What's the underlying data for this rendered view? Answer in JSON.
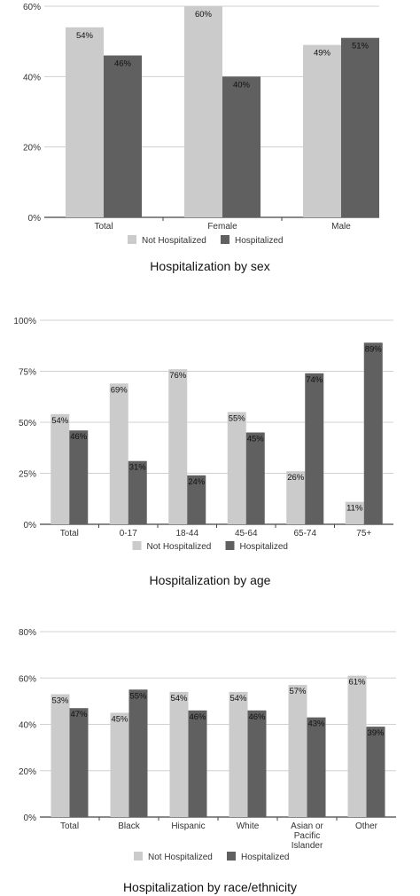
{
  "colors": {
    "not_hospitalized": "#cbcbcb",
    "hospitalized": "#606060",
    "grid": "#d0d0d0",
    "axis": "#444444"
  },
  "legend": {
    "not_hospitalized": "Not Hospitalized",
    "hospitalized": "Hospitalized"
  },
  "chart_data": [
    {
      "type": "bar",
      "title": "Hospitalization by sex",
      "categories": [
        "Total",
        "Female",
        "Male"
      ],
      "series": [
        {
          "name": "Not Hospitalized",
          "values": [
            54,
            60,
            49
          ],
          "labels": [
            "54%",
            "60%",
            "49%"
          ]
        },
        {
          "name": "Hospitalized",
          "values": [
            46,
            40,
            51
          ],
          "labels": [
            "46%",
            "40%",
            "51%"
          ]
        }
      ],
      "ylim": [
        0,
        60
      ],
      "yticks": [
        0,
        20,
        40,
        60
      ],
      "ytick_labels": [
        "0%",
        "20%",
        "40%",
        "60%"
      ],
      "grid": true,
      "legend_position": "bottom"
    },
    {
      "type": "bar",
      "title": "Hospitalization by age",
      "categories": [
        "Total",
        "0-17",
        "18-44",
        "45-64",
        "65-74",
        "75+"
      ],
      "series": [
        {
          "name": "Not Hospitalized",
          "values": [
            54,
            69,
            76,
            55,
            26,
            11
          ],
          "labels": [
            "54%",
            "69%",
            "76%",
            "55%",
            "26%",
            "11%"
          ]
        },
        {
          "name": "Hospitalized",
          "values": [
            46,
            31,
            24,
            45,
            74,
            89
          ],
          "labels": [
            "46%",
            "31%",
            "24%",
            "45%",
            "74%",
            "89%"
          ]
        }
      ],
      "ylim": [
        0,
        100
      ],
      "yticks": [
        0,
        25,
        50,
        75,
        100
      ],
      "ytick_labels": [
        "0%",
        "25%",
        "50%",
        "75%",
        "100%"
      ],
      "grid": true,
      "legend_position": "bottom"
    },
    {
      "type": "bar",
      "title": "Hospitalization by race/ethnicity",
      "categories": [
        "Total",
        "Black",
        "Hispanic",
        "White",
        "Asian or Pacific Islander",
        "Other"
      ],
      "category_lines": [
        [
          "Total"
        ],
        [
          "Black"
        ],
        [
          "Hispanic"
        ],
        [
          "White"
        ],
        [
          "Asian or",
          "Pacific",
          "Islander"
        ],
        [
          "Other"
        ]
      ],
      "series": [
        {
          "name": "Not Hospitalized",
          "values": [
            53,
            45,
            54,
            54,
            57,
            61
          ],
          "labels": [
            "53%",
            "45%",
            "54%",
            "54%",
            "57%",
            "61%"
          ]
        },
        {
          "name": "Hospitalized",
          "values": [
            47,
            55,
            46,
            46,
            43,
            39
          ],
          "labels": [
            "47%",
            "55%",
            "46%",
            "46%",
            "43%",
            "39%"
          ]
        }
      ],
      "ylim": [
        0,
        80
      ],
      "yticks": [
        0,
        20,
        40,
        60,
        80
      ],
      "ytick_labels": [
        "0%",
        "20%",
        "40%",
        "60%",
        "80%"
      ],
      "grid": true,
      "legend_position": "bottom"
    }
  ]
}
